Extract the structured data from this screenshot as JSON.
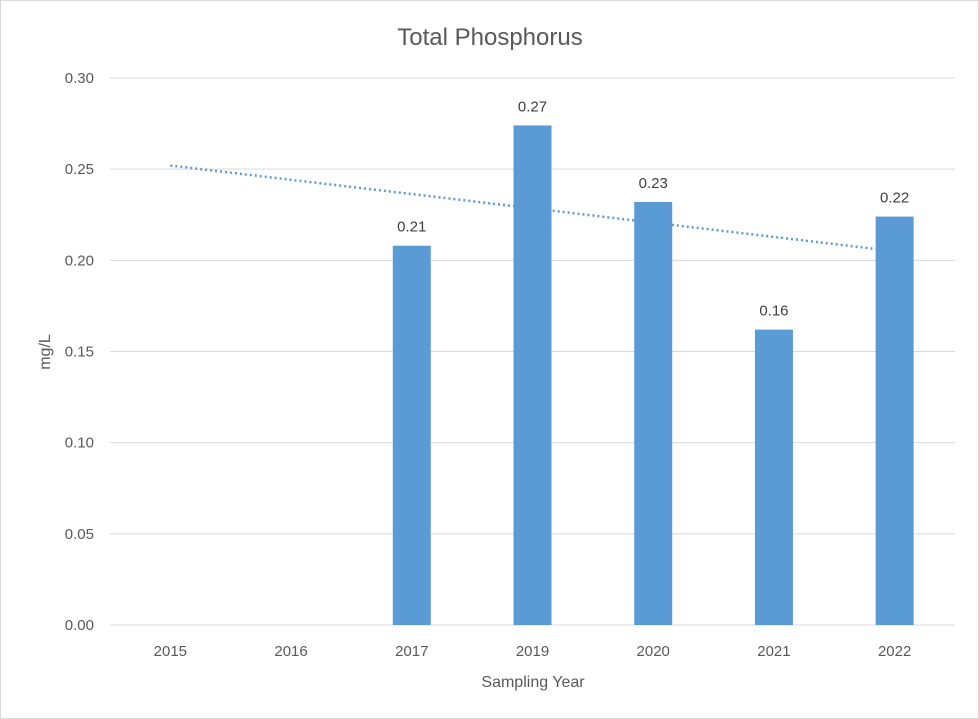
{
  "chart_data": {
    "type": "bar",
    "title": "Total Phosphorus",
    "xlabel": "Sampling Year",
    "ylabel": "mg/L",
    "ylim": [
      0,
      0.3
    ],
    "y_ticks": [
      "0.00",
      "0.05",
      "0.10",
      "0.15",
      "0.20",
      "0.25",
      "0.30"
    ],
    "categories": [
      "2015",
      "2016",
      "2017",
      "2019",
      "2020",
      "2021",
      "2022"
    ],
    "series": [
      {
        "values": [
          null,
          null,
          0.208,
          0.274,
          0.232,
          0.162,
          0.224
        ],
        "data_labels": [
          "",
          "",
          "0.21",
          "0.27",
          "0.23",
          "0.16",
          "0.22"
        ]
      }
    ],
    "trendline": {
      "type": "linear",
      "style": "dotted",
      "start_value": 0.252,
      "end_value": 0.205
    },
    "grid": true,
    "legend": "none",
    "colors": {
      "bar": "#5b9bd5",
      "trendline": "#5b9bd5",
      "grid": "#d9d9d9",
      "text": "#595959"
    }
  }
}
